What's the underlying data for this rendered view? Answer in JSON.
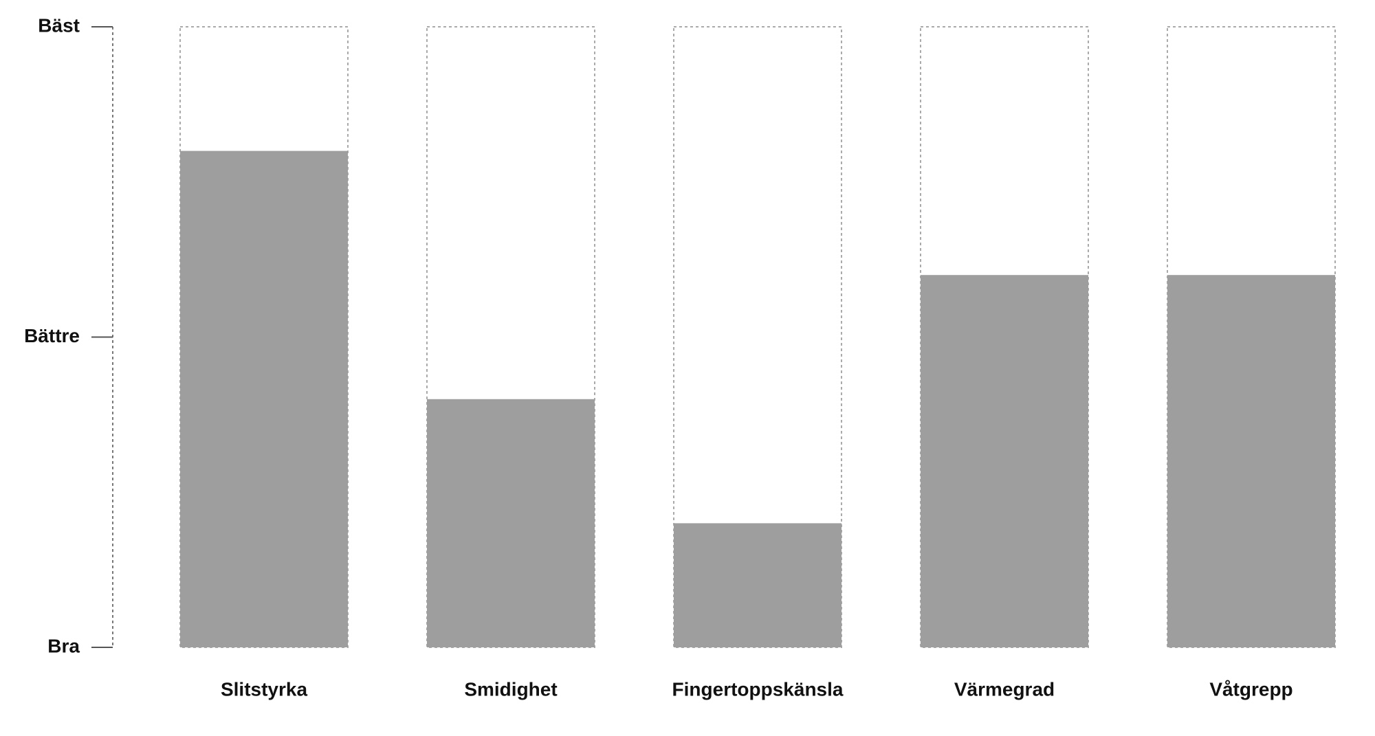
{
  "chart_data": {
    "type": "bar",
    "categories": [
      "Slitstyrka",
      "Smidighet",
      "Fingertoppskänsla",
      "Värmegrad",
      "Våtgrepp"
    ],
    "values": [
      80,
      40,
      20,
      60,
      60
    ],
    "color": "#9e9e9e",
    "ylim": [
      0,
      100
    ],
    "yticks": [
      {
        "value": 0,
        "label": "Bra"
      },
      {
        "value": 50,
        "label": "Bättre"
      },
      {
        "value": 100,
        "label": "Bäst"
      }
    ]
  }
}
